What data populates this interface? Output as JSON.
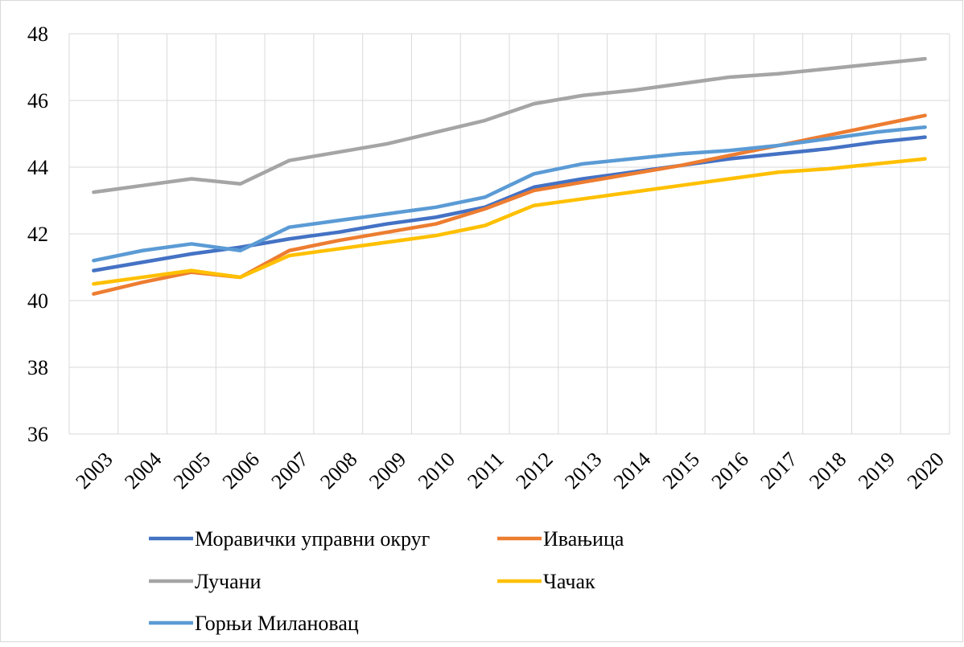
{
  "chart_data": {
    "type": "line",
    "categories": [
      "2003",
      "2004",
      "2005",
      "2006",
      "2007",
      "2008",
      "2009",
      "2010",
      "2011",
      "2012",
      "2013",
      "2014",
      "2015",
      "2016",
      "2017",
      "2018",
      "2019",
      "2020"
    ],
    "series": [
      {
        "name": "Моравички управни округ",
        "color": "#4472c4",
        "values": [
          40.9,
          41.15,
          41.4,
          41.6,
          41.85,
          42.05,
          42.3,
          42.5,
          42.8,
          43.4,
          43.65,
          43.85,
          44.05,
          44.25,
          44.4,
          44.55,
          44.75,
          44.9
        ]
      },
      {
        "name": "Ивањица",
        "color": "#ed7d31",
        "values": [
          40.2,
          40.55,
          40.85,
          40.7,
          41.5,
          41.8,
          42.05,
          42.3,
          42.75,
          43.3,
          43.55,
          43.8,
          44.05,
          44.35,
          44.65,
          44.95,
          45.25,
          45.55
        ]
      },
      {
        "name": "Лучани",
        "color": "#a5a5a5",
        "values": [
          43.25,
          43.45,
          43.65,
          43.5,
          44.2,
          44.45,
          44.7,
          45.05,
          45.4,
          45.9,
          46.15,
          46.3,
          46.5,
          46.7,
          46.8,
          46.95,
          47.1,
          47.25
        ]
      },
      {
        "name": "Чачак",
        "color": "#ffc000",
        "values": [
          40.5,
          40.7,
          40.9,
          40.7,
          41.35,
          41.55,
          41.75,
          41.95,
          42.25,
          42.85,
          43.05,
          43.25,
          43.45,
          43.65,
          43.85,
          43.95,
          44.1,
          44.25
        ]
      },
      {
        "name": "Горњи Милановац",
        "color": "#5b9bd5",
        "values": [
          41.2,
          41.5,
          41.7,
          41.5,
          42.2,
          42.4,
          42.6,
          42.8,
          43.1,
          43.8,
          44.1,
          44.25,
          44.4,
          44.5,
          44.65,
          44.85,
          45.05,
          45.2
        ]
      }
    ],
    "ylim": [
      36,
      48
    ],
    "yticks": [
      36,
      38,
      40,
      42,
      44,
      46,
      48
    ],
    "grid": true,
    "legend": "bottom"
  }
}
